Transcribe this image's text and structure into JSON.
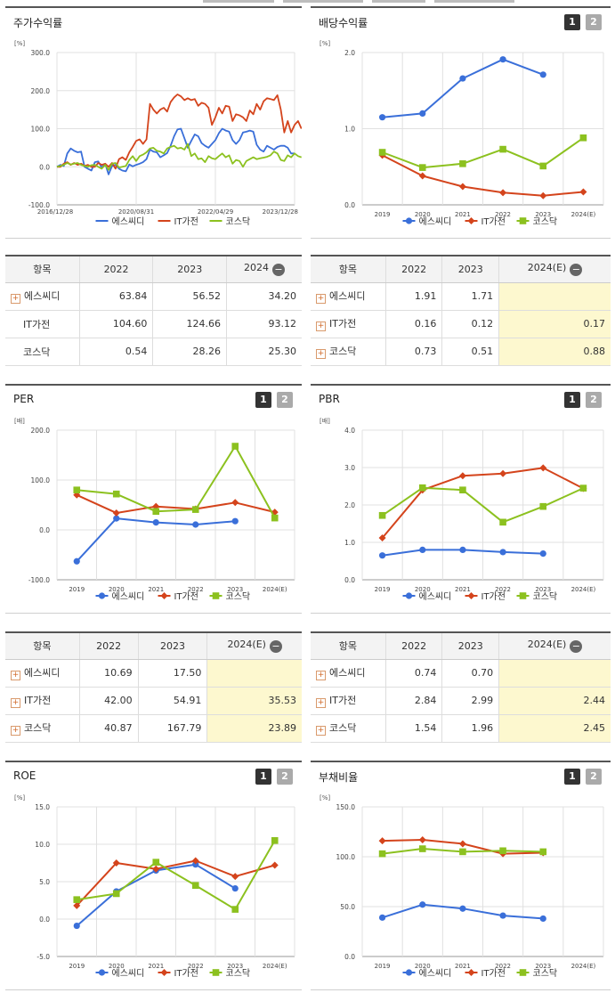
{
  "colors": {
    "s1": "#3a6fd9",
    "s2": "#d4441c",
    "s3": "#8cc11f"
  },
  "series_names": [
    "에스씨디",
    "IT가전",
    "코스닥"
  ],
  "icons": {
    "expand": "plus-icon",
    "collapse": "minus-icon"
  },
  "btn": {
    "one": "1",
    "two": "2"
  },
  "panels": {
    "price": {
      "title": "주가수익률"
    },
    "div": {
      "title": "배당수익률"
    },
    "per": {
      "title": "PER"
    },
    "pbr": {
      "title": "PBR"
    },
    "roe": {
      "title": "ROE"
    },
    "debt": {
      "title": "부채비율"
    }
  },
  "tables": {
    "price": {
      "headers": [
        "항목",
        "2022",
        "2023",
        "2024"
      ],
      "rows": [
        {
          "name": "에스씨디",
          "plus": true,
          "v": [
            "63.84",
            "56.52",
            "34.20"
          ]
        },
        {
          "name": "IT가전",
          "plus": false,
          "v": [
            "104.60",
            "124.66",
            "93.12"
          ]
        },
        {
          "name": "코스닥",
          "plus": false,
          "v": [
            "0.54",
            "28.26",
            "25.30"
          ]
        }
      ]
    },
    "div": {
      "headers": [
        "항목",
        "2022",
        "2023",
        "2024(E)"
      ],
      "rows": [
        {
          "name": "에스씨디",
          "plus": true,
          "v": [
            "1.91",
            "1.71",
            ""
          ]
        },
        {
          "name": "IT가전",
          "plus": true,
          "v": [
            "0.16",
            "0.12",
            "0.17"
          ]
        },
        {
          "name": "코스닥",
          "plus": true,
          "v": [
            "0.73",
            "0.51",
            "0.88"
          ]
        }
      ]
    },
    "per": {
      "headers": [
        "항목",
        "2022",
        "2023",
        "2024(E)"
      ],
      "rows": [
        {
          "name": "에스씨디",
          "plus": true,
          "v": [
            "10.69",
            "17.50",
            ""
          ]
        },
        {
          "name": "IT가전",
          "plus": true,
          "v": [
            "42.00",
            "54.91",
            "35.53"
          ]
        },
        {
          "name": "코스닥",
          "plus": true,
          "v": [
            "40.87",
            "167.79",
            "23.89"
          ]
        }
      ]
    },
    "pbr": {
      "headers": [
        "항목",
        "2022",
        "2023",
        "2024(E)"
      ],
      "rows": [
        {
          "name": "에스씨디",
          "plus": true,
          "v": [
            "0.74",
            "0.70",
            ""
          ]
        },
        {
          "name": "IT가전",
          "plus": true,
          "v": [
            "2.84",
            "2.99",
            "2.44"
          ]
        },
        {
          "name": "코스닥",
          "plus": true,
          "v": [
            "1.54",
            "1.96",
            "2.45"
          ]
        }
      ]
    }
  },
  "chart_data": [
    {
      "id": "price",
      "type": "line",
      "unit": "[%]",
      "ylim": [
        -100,
        300
      ],
      "yticks": [
        "300.0",
        "200.0",
        "100.0",
        "0.0",
        "-100.0"
      ],
      "xticks": [
        "2016/12/28",
        "2020/08/31",
        "2022/04/29",
        "2023/12/28"
      ],
      "grid": true,
      "legend": "bottom",
      "series": [
        {
          "name": "에스씨디",
          "values": [
            0,
            5,
            2,
            35,
            48,
            42,
            38,
            40,
            0,
            -5,
            -10,
            12,
            14,
            -2,
            8,
            -20,
            2,
            5,
            -5,
            -10,
            -12,
            6,
            1,
            5,
            8,
            12,
            20,
            45,
            40,
            38,
            25,
            30,
            36,
            55,
            80,
            98,
            100,
            75,
            50,
            68,
            85,
            80,
            62,
            55,
            50,
            60,
            70,
            88,
            100,
            95,
            92,
            70,
            60,
            70,
            90,
            92,
            95,
            92,
            58,
            45,
            40,
            55,
            50,
            45,
            52,
            55,
            55,
            50,
            35,
            35
          ]
        },
        {
          "name": "IT가전",
          "values": [
            0,
            0,
            8,
            12,
            5,
            10,
            5,
            8,
            2,
            5,
            0,
            0,
            10,
            5,
            8,
            0,
            10,
            -5,
            20,
            25,
            18,
            38,
            52,
            68,
            72,
            60,
            72,
            165,
            150,
            140,
            150,
            155,
            145,
            170,
            182,
            190,
            185,
            175,
            180,
            175,
            178,
            160,
            168,
            165,
            155,
            110,
            130,
            155,
            140,
            160,
            158,
            120,
            138,
            135,
            130,
            120,
            148,
            138,
            165,
            150,
            172,
            180,
            178,
            175,
            188,
            150,
            90,
            120,
            90,
            110,
            120,
            100
          ]
        },
        {
          "name": "코스닥",
          "values": [
            0,
            2,
            5,
            10,
            6,
            8,
            10,
            5,
            2,
            0,
            4,
            5,
            0,
            -5,
            5,
            -8,
            8,
            10,
            -2,
            0,
            2,
            18,
            28,
            15,
            28,
            32,
            38,
            48,
            50,
            42,
            40,
            35,
            48,
            52,
            55,
            48,
            50,
            45,
            60,
            28,
            35,
            20,
            22,
            12,
            28,
            22,
            20,
            28,
            35,
            25,
            30,
            8,
            18,
            15,
            0,
            15,
            20,
            25,
            20,
            22,
            24,
            26,
            30,
            40,
            35,
            18,
            15,
            30,
            25,
            35,
            28,
            25
          ]
        }
      ]
    },
    {
      "id": "div",
      "type": "line",
      "unit": "[%]",
      "ylim": [
        0,
        2
      ],
      "yticks": [
        "2.0",
        "1.0",
        "0.0"
      ],
      "x": [
        "2019",
        "2020",
        "2021",
        "2022",
        "2023",
        "2024(E)"
      ],
      "grid": true,
      "legend": "bottom",
      "series": [
        {
          "name": "에스씨디",
          "values": [
            1.15,
            1.2,
            1.66,
            1.91,
            1.71,
            null
          ]
        },
        {
          "name": "IT가전",
          "values": [
            0.65,
            0.38,
            0.24,
            0.16,
            0.12,
            0.17
          ]
        },
        {
          "name": "코스닥",
          "values": [
            0.69,
            0.49,
            0.54,
            0.73,
            0.51,
            0.88
          ]
        }
      ]
    },
    {
      "id": "per",
      "type": "line",
      "unit": "[배]",
      "ylim": [
        -100,
        200
      ],
      "yticks": [
        "200.0",
        "100.0",
        "0.0",
        "-100.0"
      ],
      "x": [
        "2019",
        "2020",
        "2021",
        "2022",
        "2023",
        "2024(E)"
      ],
      "grid": true,
      "legend": "bottom",
      "series": [
        {
          "name": "에스씨디",
          "values": [
            -63,
            23,
            15,
            10.69,
            17.5,
            null
          ]
        },
        {
          "name": "IT가전",
          "values": [
            70,
            34,
            47,
            42,
            54.91,
            35.53
          ]
        },
        {
          "name": "코스닥",
          "values": [
            80,
            72,
            37,
            40.87,
            167.79,
            23.89
          ]
        }
      ]
    },
    {
      "id": "pbr",
      "type": "line",
      "unit": "[배]",
      "ylim": [
        0,
        4
      ],
      "yticks": [
        "4.0",
        "3.0",
        "2.0",
        "1.0",
        "0.0"
      ],
      "x": [
        "2019",
        "2020",
        "2021",
        "2022",
        "2023",
        "2024(E)"
      ],
      "grid": true,
      "legend": "bottom",
      "series": [
        {
          "name": "에스씨디",
          "values": [
            0.65,
            0.8,
            0.8,
            0.74,
            0.7,
            null
          ]
        },
        {
          "name": "IT가전",
          "values": [
            1.12,
            2.4,
            2.78,
            2.84,
            2.99,
            2.44
          ]
        },
        {
          "name": "코스닥",
          "values": [
            1.72,
            2.46,
            2.4,
            1.54,
            1.96,
            2.45
          ]
        }
      ]
    },
    {
      "id": "roe",
      "type": "line",
      "unit": "[%]",
      "ylim": [
        -5,
        15
      ],
      "yticks": [
        "15.0",
        "10.0",
        "5.0",
        "0.0",
        "-5.0"
      ],
      "x": [
        "2019",
        "2020",
        "2021",
        "2022",
        "2023",
        "2024(E)"
      ],
      "grid": true,
      "legend": "bottom",
      "series": [
        {
          "name": "에스씨디",
          "values": [
            -0.9,
            3.7,
            6.5,
            7.3,
            4.1,
            null
          ]
        },
        {
          "name": "IT가전",
          "values": [
            1.8,
            7.5,
            6.7,
            7.8,
            5.7,
            7.2
          ]
        },
        {
          "name": "코스닥",
          "values": [
            2.6,
            3.4,
            7.6,
            4.5,
            1.3,
            10.5
          ]
        }
      ]
    },
    {
      "id": "debt",
      "type": "line",
      "unit": "[%]",
      "ylim": [
        0,
        150
      ],
      "yticks": [
        "150.0",
        "100.0",
        "50.0",
        "0.0"
      ],
      "x": [
        "2019",
        "2020",
        "2021",
        "2022",
        "2023",
        "2024(E)"
      ],
      "grid": true,
      "legend": "bottom",
      "series": [
        {
          "name": "에스씨디",
          "values": [
            39,
            52,
            48,
            41,
            38,
            null
          ]
        },
        {
          "name": "IT가전",
          "values": [
            116,
            117,
            113,
            103,
            104,
            null
          ]
        },
        {
          "name": "코스닥",
          "values": [
            103,
            108,
            105,
            106,
            105,
            null
          ]
        }
      ]
    }
  ]
}
